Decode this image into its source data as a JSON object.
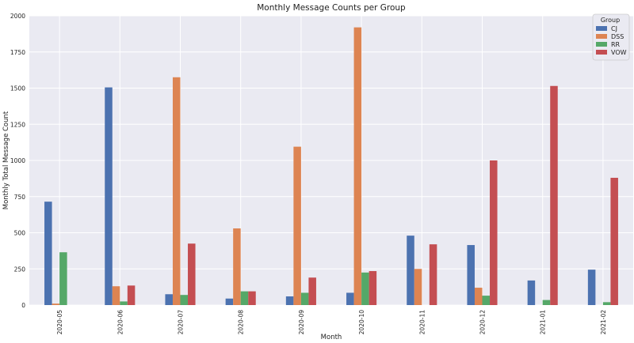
{
  "chart_data": {
    "type": "bar",
    "title": "Monthly Message Counts per Group",
    "xlabel": "Month",
    "ylabel": "Monthly Total Message Count",
    "categories": [
      "2020-05",
      "2020-06",
      "2020-07",
      "2020-08",
      "2020-09",
      "2020-10",
      "2020-11",
      "2020-12",
      "2021-01",
      "2021-02"
    ],
    "ylim": [
      0,
      2000
    ],
    "yticks": [
      0,
      250,
      500,
      750,
      1000,
      1250,
      1500,
      1750,
      2000
    ],
    "grid": true,
    "legend": {
      "title": "Group",
      "placement": "top-right"
    },
    "series": [
      {
        "name": "CJ",
        "color": "#4C72B0",
        "values": [
          715,
          1505,
          75,
          45,
          60,
          85,
          480,
          415,
          170,
          245
        ]
      },
      {
        "name": "DSS",
        "color": "#DD8452",
        "values": [
          10,
          130,
          1575,
          530,
          1095,
          1920,
          250,
          120,
          0,
          0
        ]
      },
      {
        "name": "RR",
        "color": "#55A868",
        "values": [
          365,
          25,
          70,
          95,
          85,
          225,
          0,
          65,
          35,
          20
        ]
      },
      {
        "name": "VOW",
        "color": "#C44E52",
        "values": [
          0,
          135,
          425,
          95,
          190,
          235,
          420,
          1000,
          1515,
          880
        ]
      }
    ]
  }
}
